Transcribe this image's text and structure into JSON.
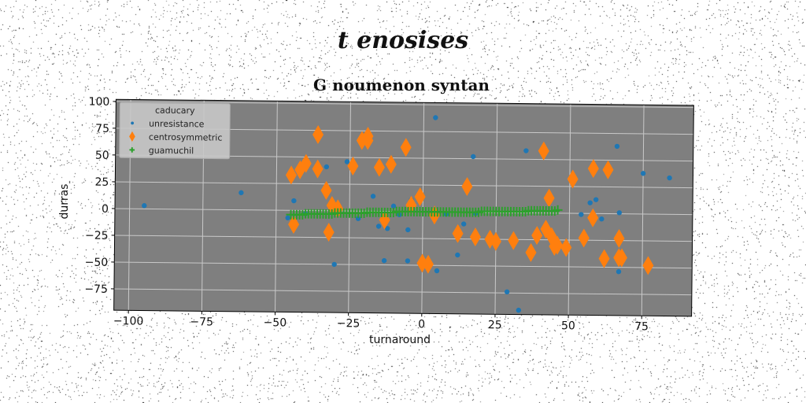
{
  "figure": {
    "suptitle": "t enosises"
  },
  "chart_data": {
    "type": "scatter",
    "title": "G noumenon syntan",
    "xlabel": "turnaround",
    "ylabel": "durras",
    "xlim": [
      -105,
      92
    ],
    "ylim": [
      -95,
      102
    ],
    "xticks": [
      -100,
      -75,
      -50,
      -25,
      0,
      25,
      50,
      75
    ],
    "yticks": [
      -75,
      -50,
      -25,
      0,
      25,
      50,
      75,
      100
    ],
    "xtick_labels": [
      "−100",
      "−75",
      "−50",
      "−25",
      "0",
      "25",
      "50",
      "75"
    ],
    "ytick_labels": [
      "−75",
      "−50",
      "−25",
      "0",
      "25",
      "50",
      "75",
      "100"
    ],
    "grid": true,
    "legend": {
      "title": "caducary",
      "position": "top-left"
    },
    "series": [
      {
        "name": "unresistance",
        "marker": "circle",
        "color": "#1f77b4",
        "x": [
          -95,
          -62,
          -46,
          -44,
          -40,
          -33,
          -30,
          -26,
          -22,
          -19,
          -17,
          -15,
          -13,
          -12,
          -10,
          -8,
          -5,
          -5,
          -4,
          4,
          5,
          8,
          12,
          14,
          17,
          18,
          29,
          33,
          35,
          54,
          57,
          59,
          61,
          66,
          67,
          67,
          75,
          84
        ],
        "y": [
          3,
          16,
          -7,
          9,
          -3,
          41,
          -50,
          46,
          -7,
          65,
          14,
          -14,
          -46,
          -16,
          5,
          -3,
          -17,
          -46,
          11,
          88,
          -55,
          -2,
          -40,
          -11,
          52,
          -1,
          -74,
          -91,
          58,
          -1,
          10,
          13,
          -5,
          63,
          1,
          -54,
          38,
          34
        ]
      },
      {
        "name": "centrosymmetric",
        "marker": "thin_diamond",
        "color": "#ff7f0e",
        "x": [
          -45,
          -44,
          -42,
          -40,
          -36,
          -36,
          -33,
          -32,
          -31,
          -29,
          -24,
          -21,
          -19,
          -19,
          -15,
          -13,
          -11,
          -6,
          -4,
          -1,
          0,
          2,
          4,
          12,
          15,
          18,
          23,
          25,
          31,
          37,
          39,
          41,
          42,
          43,
          44,
          45,
          46,
          49,
          51,
          55,
          58,
          58,
          62,
          63,
          67,
          67,
          68,
          77
        ],
        "y": [
          33,
          -13,
          38,
          44,
          71,
          39,
          19,
          -20,
          5,
          2,
          42,
          66,
          66,
          70,
          41,
          -8,
          44,
          60,
          6,
          14,
          -48,
          -49,
          -3,
          -20,
          24,
          -23,
          -25,
          -27,
          -26,
          -37,
          -21,
          58,
          -15,
          14,
          -22,
          -31,
          -30,
          -32,
          32,
          -23,
          -4,
          42,
          -42,
          41,
          -23,
          -41,
          -41,
          -48
        ]
      },
      {
        "name": "guamuchil",
        "marker": "plus",
        "color": "#2ca02c",
        "x": [
          -45,
          -44,
          -43,
          -42,
          -41,
          -40,
          -39,
          -38,
          -37,
          -36,
          -35,
          -34,
          -33,
          -32,
          -31,
          -30,
          -29,
          -28,
          -27,
          -26,
          -25,
          -24,
          -23,
          -22,
          -21,
          -20,
          -19,
          -18,
          -17,
          -16,
          -15,
          -14,
          -13,
          -12,
          -11,
          -10,
          -9,
          -8,
          -7,
          -6,
          -5,
          -4,
          -3,
          -2,
          -1,
          0,
          1,
          2,
          3,
          4,
          5,
          6,
          7,
          8,
          9,
          10,
          11,
          12,
          13,
          14,
          15,
          16,
          17,
          18,
          19,
          20,
          21,
          22,
          23,
          24,
          25,
          26,
          27,
          28,
          29,
          30,
          31,
          32,
          33,
          34,
          35,
          36,
          37,
          38,
          39,
          40,
          41,
          42,
          43,
          44,
          45,
          46
        ],
        "y": [
          -4,
          -4,
          -4,
          -4,
          -4,
          -3,
          -3,
          -3,
          -3,
          -3,
          -3,
          -3,
          -3,
          -3,
          -3,
          -2,
          -2,
          -2,
          -2,
          -2,
          -2,
          -2,
          -2,
          -2,
          -2,
          -2,
          -1,
          -1,
          -1,
          -1,
          -1,
          -1,
          -1,
          -1,
          -1,
          -1,
          0,
          0,
          0,
          0,
          0,
          0,
          0,
          0,
          0,
          0,
          0,
          0,
          0,
          0,
          0,
          0,
          0,
          0,
          0,
          0,
          0,
          0,
          0,
          0,
          0,
          0,
          0,
          0,
          0,
          1,
          1,
          1,
          1,
          1,
          1,
          1,
          1,
          1,
          1,
          1,
          1,
          1,
          1,
          1,
          1,
          2,
          2,
          2,
          2,
          2,
          2,
          2,
          2,
          2,
          2,
          3
        ]
      }
    ]
  }
}
